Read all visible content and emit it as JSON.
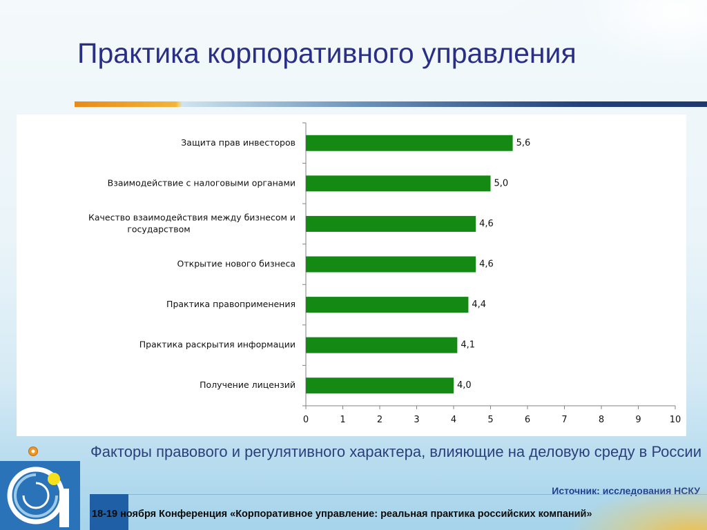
{
  "slide": {
    "title": "Практика корпоративного управления",
    "footnote": "Факторы правового и регулятивного характера, влияющие на деловую среду в России",
    "source": "Источник: исследования НСКУ",
    "footer": "18-19 ноября Конференция «Корпоративное управление: реальная практика российских компаний»"
  },
  "colors": {
    "title": "#2a2f86",
    "bar": "#148a14",
    "footnote": "#2b3f7e",
    "source": "#1f3f94"
  },
  "icons": {
    "bullet": "orange-circle-bullet",
    "logo": "organization-spiral-logo"
  },
  "chart_data": {
    "type": "bar",
    "orientation": "horizontal",
    "categories": [
      "Защита прав инвесторов",
      "Взаимодействие с налоговыми органами",
      "Качество взаимодействия между бизнесом и государством",
      "Открытие нового бизнеса",
      "Практика правоприменения",
      "Практика раскрытия информации",
      "Получение лицензий"
    ],
    "category_lines": [
      [
        "Защита прав инвесторов"
      ],
      [
        "Взаимодействие с налоговыми органами"
      ],
      [
        "Качество взаимодействия между бизнесом и",
        "государством"
      ],
      [
        "Открытие нового бизнеса"
      ],
      [
        "Практика правоприменения"
      ],
      [
        "Практика раскрытия информации"
      ],
      [
        "Получение лицензий"
      ]
    ],
    "values": [
      5.6,
      5.0,
      4.6,
      4.6,
      4.4,
      4.1,
      4.0
    ],
    "value_labels": [
      "5,6",
      "5,0",
      "4,6",
      "4,6",
      "4,4",
      "4,1",
      "4,0"
    ],
    "xlim": [
      0,
      10
    ],
    "xticks": [
      0,
      1,
      2,
      3,
      4,
      5,
      6,
      7,
      8,
      9,
      10
    ],
    "grid": false,
    "legend": "none"
  }
}
